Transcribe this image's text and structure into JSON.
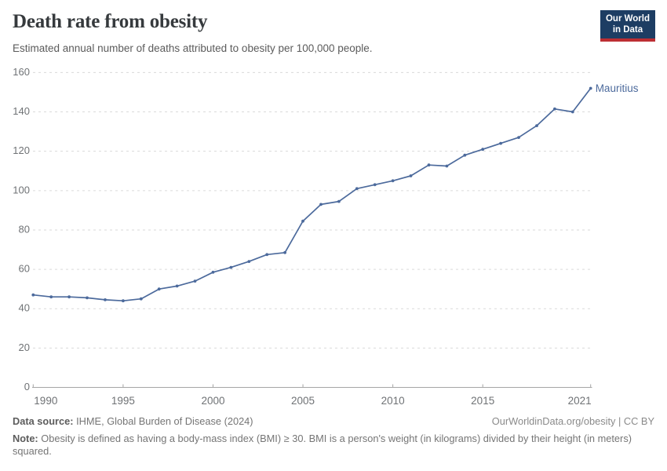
{
  "header": {
    "title": "Death rate from obesity",
    "subtitle": "Estimated annual number of deaths attributed to obesity per 100,000 people.",
    "logo": {
      "line1": "Our World",
      "line2": "in Data",
      "background_color": "#1d3d63",
      "accent_color": "#bc2e33"
    }
  },
  "chart_data": {
    "type": "line",
    "title": "Death rate from obesity",
    "subtitle": "Estimated annual number of deaths attributed to obesity per 100,000 people.",
    "x": [
      1990,
      1991,
      1992,
      1993,
      1994,
      1995,
      1996,
      1997,
      1998,
      1999,
      2000,
      2001,
      2002,
      2003,
      2004,
      2005,
      2006,
      2007,
      2008,
      2009,
      2010,
      2011,
      2012,
      2013,
      2014,
      2015,
      2016,
      2017,
      2018,
      2019,
      2020,
      2021
    ],
    "series": [
      {
        "name": "Mauritius",
        "color": "#4c6a9c",
        "values": [
          47,
          46,
          46,
          45.5,
          44.5,
          44,
          45,
          50,
          51.5,
          54,
          58.5,
          61,
          64,
          67.5,
          68.5,
          84.5,
          93,
          94.5,
          101,
          103,
          105,
          107.5,
          113,
          112.5,
          118,
          121,
          124,
          127,
          133,
          141.5,
          140,
          152
        ]
      }
    ],
    "xlabel": "",
    "ylabel": "",
    "xlim": [
      1990,
      2021
    ],
    "ylim": [
      0,
      160
    ],
    "yticks": [
      0,
      20,
      40,
      60,
      80,
      100,
      120,
      140,
      160
    ],
    "xticks": [
      1990,
      1995,
      2000,
      2005,
      2010,
      2015,
      2021
    ],
    "grid": "horizontal dashed",
    "legend_position": "end-of-line label",
    "colors": {
      "line": "#4c6a9c",
      "gridline": "#dadada",
      "axis": "#a5a5a5",
      "tick_label": "#6f7275"
    }
  },
  "footer": {
    "datasource_label": "Data source:",
    "datasource_value": " IHME, Global Burden of Disease (2024)",
    "attribution": "OurWorldinData.org/obesity | CC BY",
    "note_label": "Note:",
    "note_value": " Obesity is defined as having a body-mass index (BMI) ≥ 30. BMI is a person's weight (in kilograms) divided by their height (in meters) squared."
  }
}
